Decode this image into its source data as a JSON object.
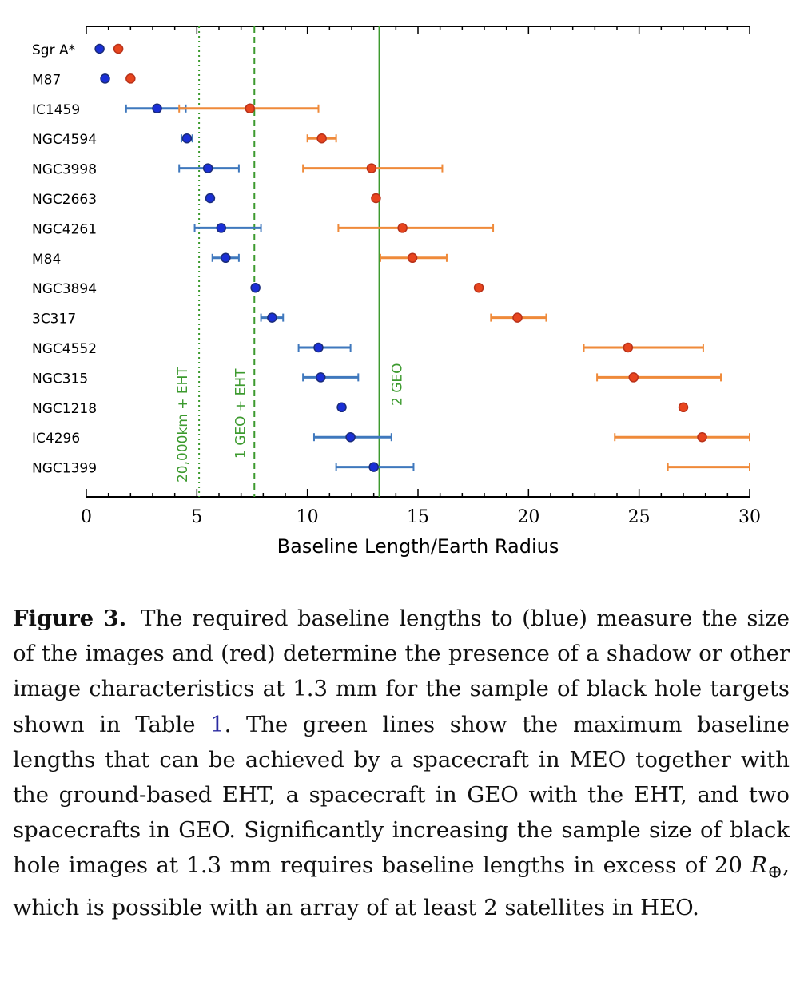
{
  "chart_data": {
    "type": "scatter",
    "xlabel": "Baseline Length/Earth Radius",
    "xlim": [
      0,
      30
    ],
    "xticks": [
      0,
      5,
      10,
      15,
      20,
      25,
      30
    ],
    "categories": [
      "Sgr A*",
      "M87",
      "IC1459",
      "NGC4594",
      "NGC3998",
      "NGC2663",
      "NGC4261",
      "M84",
      "NGC3894",
      "3C317",
      "NGC4552",
      "NGC315",
      "NGC1218",
      "IC4296",
      "NGC1399"
    ],
    "series": [
      {
        "name": "size (blue)",
        "color": "#1a2fd6",
        "errcolor": "#3f78bd",
        "values": [
          0.6,
          0.85,
          3.2,
          4.55,
          5.5,
          5.6,
          6.1,
          6.3,
          7.65,
          8.4,
          10.5,
          10.6,
          11.55,
          11.95,
          13.0
        ],
        "err_low": [
          null,
          null,
          1.8,
          4.3,
          4.2,
          null,
          4.9,
          5.7,
          null,
          7.9,
          9.6,
          9.8,
          null,
          10.3,
          11.3
        ],
        "err_high": [
          null,
          null,
          4.5,
          4.8,
          6.9,
          null,
          7.9,
          6.9,
          null,
          8.9,
          11.95,
          12.3,
          null,
          13.8,
          14.8
        ]
      },
      {
        "name": "shadow (red)",
        "color": "#e8451e",
        "errcolor": "#ef8a3a",
        "values": [
          1.45,
          2.0,
          7.4,
          10.65,
          12.9,
          13.1,
          14.3,
          14.75,
          17.75,
          19.5,
          24.5,
          24.75,
          27.0,
          27.85,
          null
        ],
        "err_low": [
          null,
          null,
          4.2,
          10.0,
          9.8,
          null,
          11.4,
          13.3,
          null,
          18.3,
          22.5,
          23.1,
          null,
          23.9,
          26.3
        ],
        "err_high": [
          null,
          null,
          10.5,
          11.3,
          16.1,
          null,
          18.4,
          16.3,
          null,
          20.8,
          27.9,
          28.7,
          null,
          30.0,
          30.0
        ]
      }
    ],
    "reference_lines": [
      {
        "label": "20,000km + EHT",
        "x": 5.1,
        "style": "dotted",
        "color": "#3c9a2e"
      },
      {
        "label": "1 GEO + EHT",
        "x": 7.6,
        "style": "dashed",
        "color": "#3c9a2e"
      },
      {
        "label": "2 GEO",
        "x": 13.25,
        "style": "solid",
        "color": "#3c9a2e"
      }
    ]
  },
  "caption": {
    "label": "Figure 3.",
    "part1": "The required baseline lengths to (blue) measure the size of the images and (red) determine the presence of a shadow or other image characteristics at 1.3 mm for the sample of black hole targets shown in Table ",
    "table_ref": "1",
    "part2": ". The green lines show the maximum baseline lengths that can be achieved by a spacecraft in MEO together with the ground-based EHT, a spacecraft in GEO with the EHT, and two spacecrafts in GEO. Significantly increasing the sample size of black hole images at 1.3 mm requires baseline lengths in excess of 20 ",
    "r_symbol": "R",
    "r_subscript": "⊕",
    "part3": ", which is possible with an array of at least 2 satellites in HEO."
  }
}
